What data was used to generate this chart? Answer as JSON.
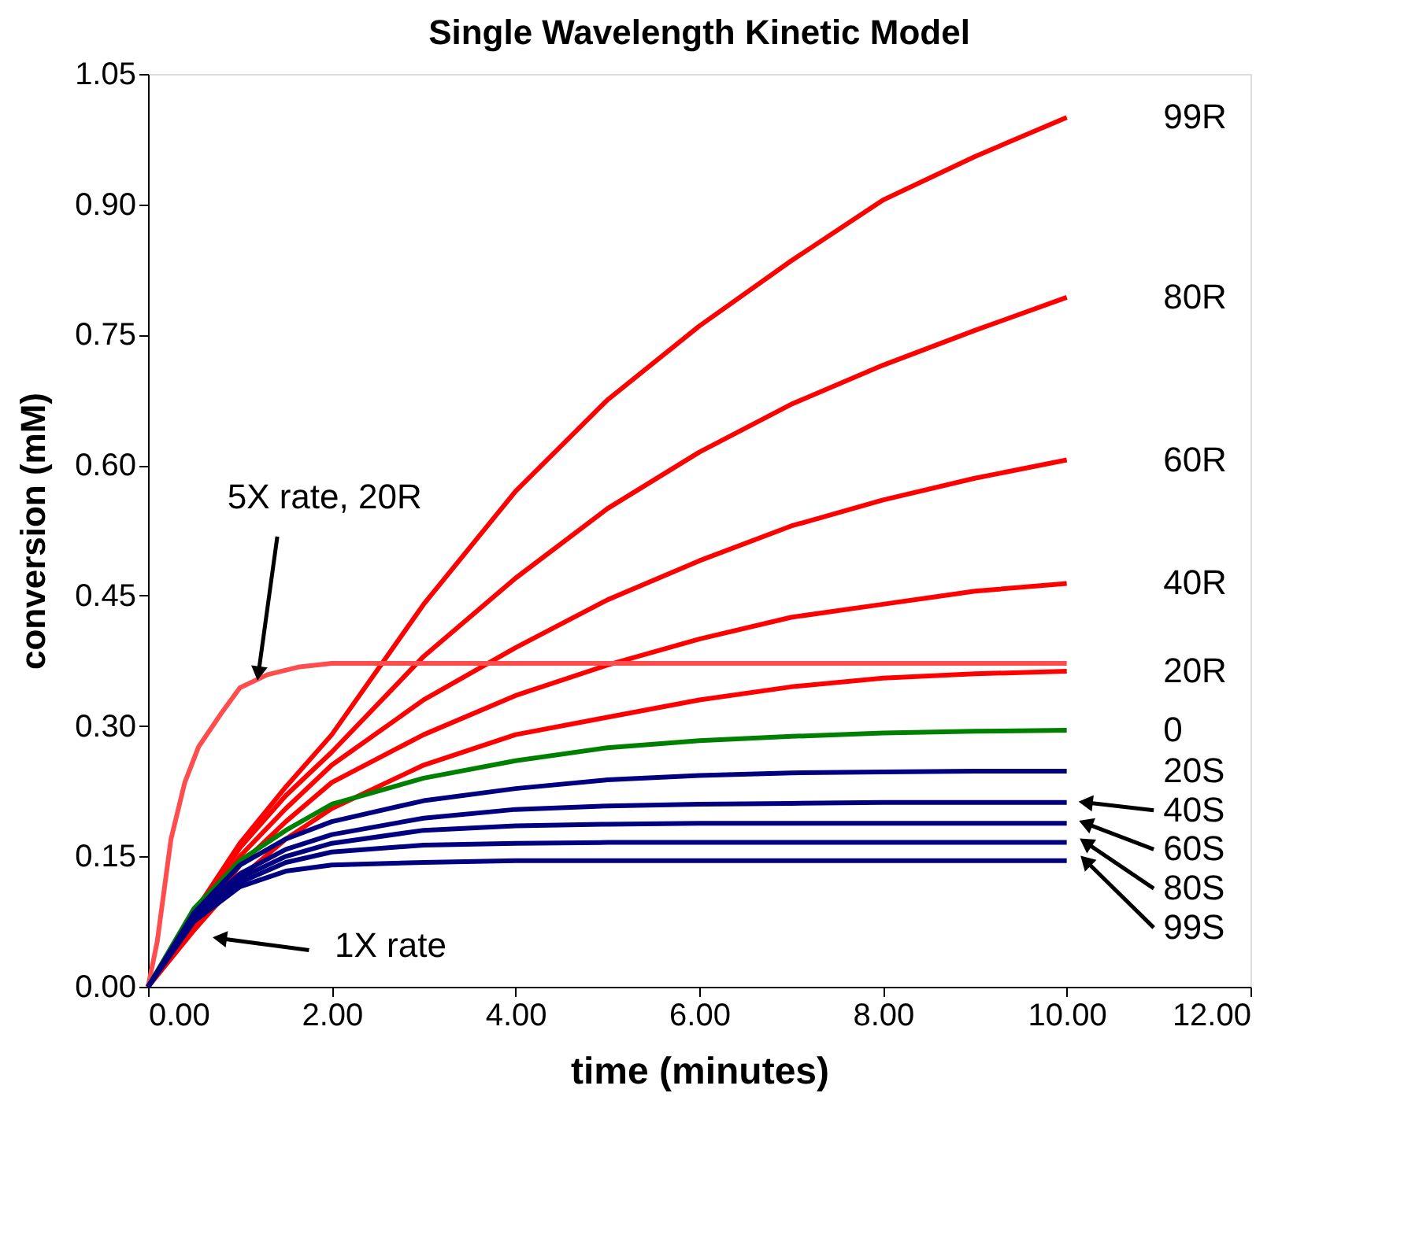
{
  "chart_data": {
    "type": "line",
    "title": "Single Wavelength Kinetic Model",
    "xlabel": "time (minutes)",
    "ylabel": "conversion (mM)",
    "x": [
      0,
      0.5,
      1,
      1.5,
      2,
      3,
      4,
      5,
      6,
      7,
      8,
      9,
      10
    ],
    "series": [
      {
        "name": "99R",
        "color": "#ff0000",
        "values": [
          0,
          0.085,
          0.165,
          0.23,
          0.29,
          0.44,
          0.57,
          0.675,
          0.76,
          0.835,
          0.905,
          0.955,
          1.0
        ]
      },
      {
        "name": "80R",
        "color": "#ff0000",
        "values": [
          0,
          0.08,
          0.16,
          0.22,
          0.27,
          0.38,
          0.47,
          0.55,
          0.615,
          0.67,
          0.715,
          0.755,
          0.793
        ]
      },
      {
        "name": "60R",
        "color": "#ff0000",
        "values": [
          0,
          0.075,
          0.15,
          0.205,
          0.255,
          0.33,
          0.39,
          0.445,
          0.49,
          0.53,
          0.56,
          0.585,
          0.606
        ]
      },
      {
        "name": "40R",
        "color": "#ff0000",
        "values": [
          0,
          0.07,
          0.14,
          0.19,
          0.235,
          0.29,
          0.335,
          0.37,
          0.4,
          0.425,
          0.44,
          0.455,
          0.464
        ]
      },
      {
        "color": "#ff4d4d",
        "x": [
          0,
          0.1,
          0.25,
          0.4,
          0.55,
          0.8,
          1.0,
          1.3,
          1.65,
          2,
          3,
          4,
          5,
          6,
          7,
          8,
          9,
          10
        ],
        "values": [
          0,
          0.052,
          0.17,
          0.235,
          0.276,
          0.315,
          0.344,
          0.359,
          0.368,
          0.372,
          0.372,
          0.372,
          0.372,
          0.372,
          0.372,
          0.372,
          0.372,
          0.372
        ]
      },
      {
        "name": "20R",
        "color": "#ff0000",
        "values": [
          0,
          0.065,
          0.125,
          0.17,
          0.205,
          0.255,
          0.29,
          0.31,
          0.33,
          0.345,
          0.355,
          0.36,
          0.363
        ]
      },
      {
        "name": "0",
        "color": "#008000",
        "values": [
          0,
          0.09,
          0.145,
          0.18,
          0.21,
          0.24,
          0.26,
          0.275,
          0.283,
          0.288,
          0.292,
          0.294,
          0.295
        ]
      },
      {
        "name": "20S",
        "color": "#000080",
        "values": [
          0,
          0.085,
          0.14,
          0.17,
          0.19,
          0.214,
          0.228,
          0.238,
          0.243,
          0.246,
          0.247,
          0.248,
          0.248
        ]
      },
      {
        "name": "40S",
        "color": "#000080",
        "values": [
          0,
          0.083,
          0.13,
          0.158,
          0.175,
          0.194,
          0.204,
          0.208,
          0.21,
          0.211,
          0.212,
          0.212,
          0.212
        ]
      },
      {
        "name": "60S",
        "color": "#000080",
        "values": [
          0,
          0.08,
          0.125,
          0.15,
          0.165,
          0.18,
          0.185,
          0.187,
          0.188,
          0.188,
          0.188,
          0.188,
          0.188
        ]
      },
      {
        "name": "80S",
        "color": "#000080",
        "values": [
          0,
          0.078,
          0.12,
          0.143,
          0.155,
          0.163,
          0.165,
          0.166,
          0.166,
          0.166,
          0.166,
          0.166,
          0.166
        ]
      },
      {
        "name": "99S",
        "color": "#000080",
        "values": [
          0,
          0.075,
          0.115,
          0.133,
          0.14,
          0.143,
          0.145,
          0.145,
          0.145,
          0.145,
          0.145,
          0.145,
          0.145
        ]
      }
    ],
    "xlim": [
      0,
      12
    ],
    "xticks": [
      {
        "value": 0,
        "label": "0.00"
      },
      {
        "value": 2,
        "label": "2.00"
      },
      {
        "value": 4,
        "label": "4.00"
      },
      {
        "value": 6,
        "label": "6.00"
      },
      {
        "value": 8,
        "label": "8.00"
      },
      {
        "value": 10,
        "label": "10.00"
      },
      {
        "value": 12,
        "label": "12.00"
      }
    ],
    "ylim": [
      0,
      1.05
    ],
    "yticks": [
      {
        "value": 0,
        "label": "0.00"
      },
      0.15,
      {
        "value": 0.3,
        "label": "0.30"
      },
      0.45,
      {
        "value": 0.6,
        "label": "0.60"
      },
      0.75,
      {
        "value": 0.9,
        "label": "0.90"
      },
      1.05
    ],
    "annotations": [
      {
        "text": "5X rate, 20R",
        "x": 1.15,
        "y": 0.355
      },
      "1X rate"
    ],
    "grid": false,
    "legend": false,
    "marker": "none",
    "line_style": "solid"
  }
}
